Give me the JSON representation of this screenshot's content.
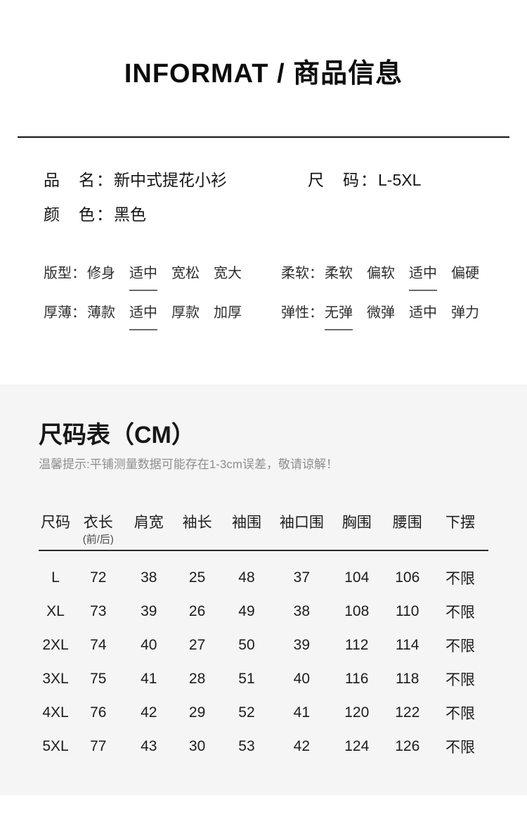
{
  "colors": {
    "page_bg": "#ffffff",
    "section_bg": "#f5f5f5",
    "text_primary": "#141414",
    "note_gray": "#8e8e8e"
  },
  "header": {
    "title": "INFORMAT / 商品信息"
  },
  "info": {
    "name_label": "品　名：",
    "name_value": "新中式提花小衫",
    "size_label": "尺　码：",
    "size_value": "L-5XL",
    "color_label": "颜　色：",
    "color_value": "黑色"
  },
  "attributes": {
    "groups": [
      {
        "label": "版型：",
        "options": [
          "修身",
          "适中",
          "宽松",
          "宽大"
        ],
        "selected": 1
      },
      {
        "label": "柔软：",
        "options": [
          "柔软",
          "偏软",
          "适中",
          "偏硬"
        ],
        "selected": 2
      },
      {
        "label": "厚薄：",
        "options": [
          "薄款",
          "适中",
          "厚款",
          "加厚"
        ],
        "selected": 1
      },
      {
        "label": "弹性：",
        "options": [
          "无弹",
          "微弹",
          "适中",
          "弹力"
        ],
        "selected": 0
      }
    ]
  },
  "size_section": {
    "title": "尺码表（CM）",
    "note": "温馨提示:平铺测量数据可能存在1-3cm误差，敬请谅解！",
    "table": {
      "headers": [
        {
          "main": "尺码",
          "sub": ""
        },
        {
          "main": "衣长",
          "sub": "(前/后)"
        },
        {
          "main": "肩宽",
          "sub": ""
        },
        {
          "main": "袖长",
          "sub": ""
        },
        {
          "main": "袖围",
          "sub": ""
        },
        {
          "main": "袖口围",
          "sub": ""
        },
        {
          "main": "胸围",
          "sub": ""
        },
        {
          "main": "腰围",
          "sub": ""
        },
        {
          "main": "下摆",
          "sub": ""
        }
      ],
      "rows": [
        [
          "L",
          "72",
          "38",
          "25",
          "48",
          "37",
          "104",
          "106",
          "不限"
        ],
        [
          "XL",
          "73",
          "39",
          "26",
          "49",
          "38",
          "108",
          "110",
          "不限"
        ],
        [
          "2XL",
          "74",
          "40",
          "27",
          "50",
          "39",
          "112",
          "114",
          "不限"
        ],
        [
          "3XL",
          "75",
          "41",
          "28",
          "51",
          "40",
          "116",
          "118",
          "不限"
        ],
        [
          "4XL",
          "76",
          "42",
          "29",
          "52",
          "41",
          "120",
          "122",
          "不限"
        ],
        [
          "5XL",
          "77",
          "43",
          "30",
          "53",
          "42",
          "124",
          "126",
          "不限"
        ]
      ]
    }
  }
}
